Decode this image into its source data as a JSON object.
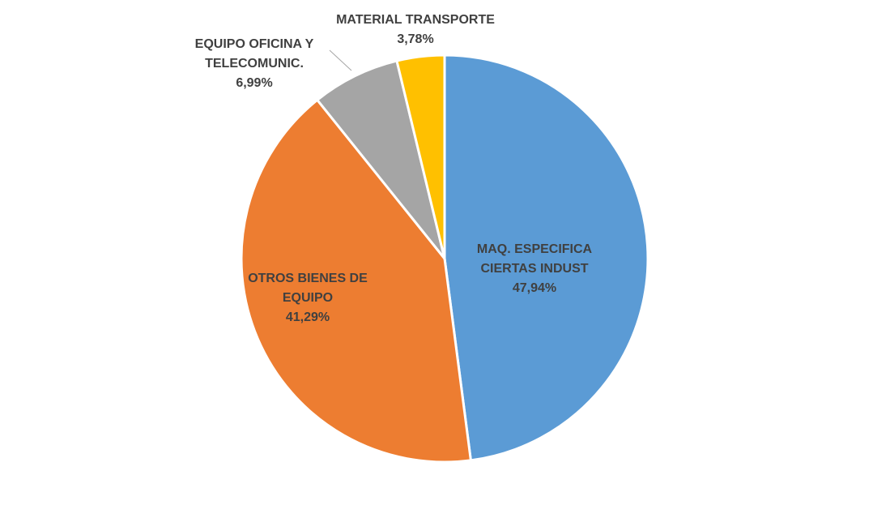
{
  "chart_data": {
    "type": "pie",
    "title": "",
    "legend": "none",
    "slices": [
      {
        "label_lines": [
          "MAQ. ESPECIFICA",
          "CIERTAS INDUST"
        ],
        "value": 47.94,
        "value_label": "47,94%",
        "color": "#5B9BD5"
      },
      {
        "label_lines": [
          "OTROS BIENES DE",
          "EQUIPO"
        ],
        "value": 41.29,
        "value_label": "41,29%",
        "color": "#ED7D31"
      },
      {
        "label_lines": [
          "EQUIPO OFICINA Y",
          "TELECOMUNIC."
        ],
        "value": 6.99,
        "value_label": "6,99%",
        "color": "#A5A5A5"
      },
      {
        "label_lines": [
          "MATERIAL TRANSPORTE"
        ],
        "value": 3.78,
        "value_label": "3,78%",
        "color": "#FFC000"
      }
    ]
  }
}
